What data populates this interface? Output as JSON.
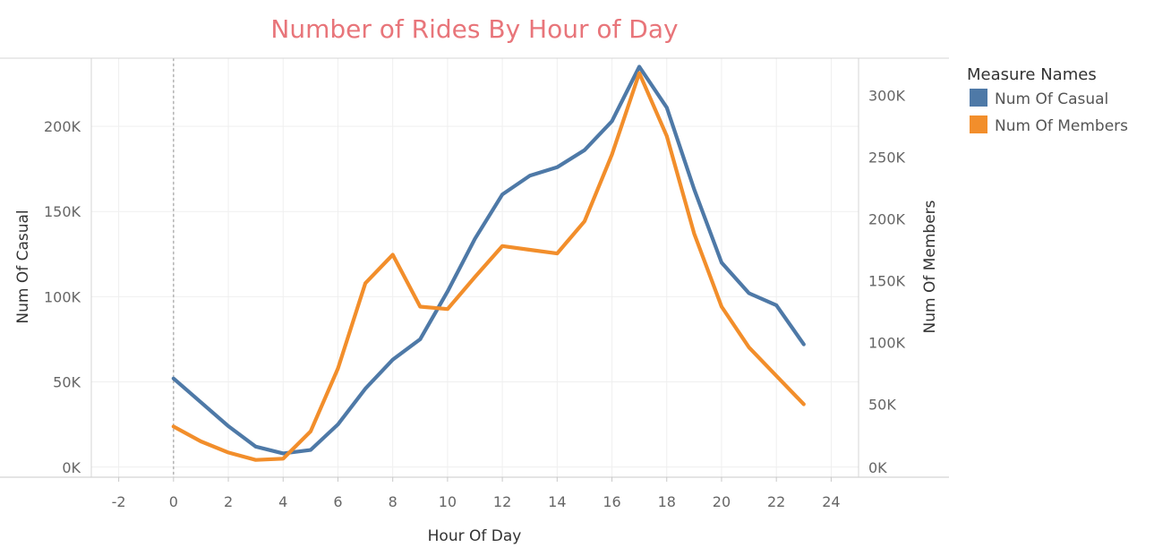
{
  "colors": {
    "title": "#e8757a",
    "casual": "#4e79a7",
    "members": "#f28e2b"
  },
  "chart_data": {
    "type": "line",
    "title": "Number of Rides By Hour of Day",
    "xlabel": "Hour Of Day",
    "ylabel_left": "Num Of Casual",
    "ylabel_right": "Num Of Members",
    "xlim": [
      -3,
      25
    ],
    "ylim_left": [
      -6000,
      240000
    ],
    "ylim_right": [
      -9000,
      330000
    ],
    "x_ticks": [
      -2,
      0,
      2,
      4,
      6,
      8,
      10,
      12,
      14,
      16,
      18,
      20,
      22,
      24
    ],
    "x_tick_labels": [
      "-2",
      "0",
      "2",
      "4",
      "6",
      "8",
      "10",
      "12",
      "14",
      "16",
      "18",
      "20",
      "22",
      "24"
    ],
    "y_left_ticks": [
      0,
      50000,
      100000,
      150000,
      200000
    ],
    "y_left_tick_labels": [
      "0K",
      "50K",
      "100K",
      "150K",
      "200K"
    ],
    "y_right_ticks": [
      0,
      50000,
      100000,
      150000,
      200000,
      250000,
      300000
    ],
    "y_right_tick_labels": [
      "0K",
      "50K",
      "100K",
      "150K",
      "200K",
      "250K",
      "300K"
    ],
    "grid": true,
    "reference_line_x": 0,
    "legend": {
      "title": "Measure Names",
      "position": "right",
      "entries": [
        "Num Of Casual",
        "Num Of Members"
      ]
    },
    "x": [
      0,
      1,
      2,
      3,
      4,
      5,
      6,
      7,
      8,
      9,
      10,
      11,
      12,
      13,
      14,
      15,
      16,
      17,
      18,
      19,
      20,
      21,
      22,
      23
    ],
    "series": [
      {
        "name": "Num Of Casual",
        "axis": "left",
        "values": [
          52000,
          38000,
          24000,
          12000,
          8000,
          10000,
          25000,
          46000,
          63000,
          75000,
          103000,
          134000,
          160000,
          171000,
          176000,
          186000,
          203000,
          235000,
          211000,
          163000,
          120000,
          102000,
          95000,
          72000
        ]
      },
      {
        "name": "Num Of Members",
        "axis": "left_scale_right",
        "values": [
          32000,
          20000,
          11000,
          5000,
          6000,
          28000,
          79000,
          148000,
          171000,
          129000,
          127000,
          153000,
          178000,
          175000,
          172000,
          198000,
          252000,
          318000,
          267000,
          188000,
          129000,
          96000,
          73000,
          50000
        ]
      }
    ]
  }
}
